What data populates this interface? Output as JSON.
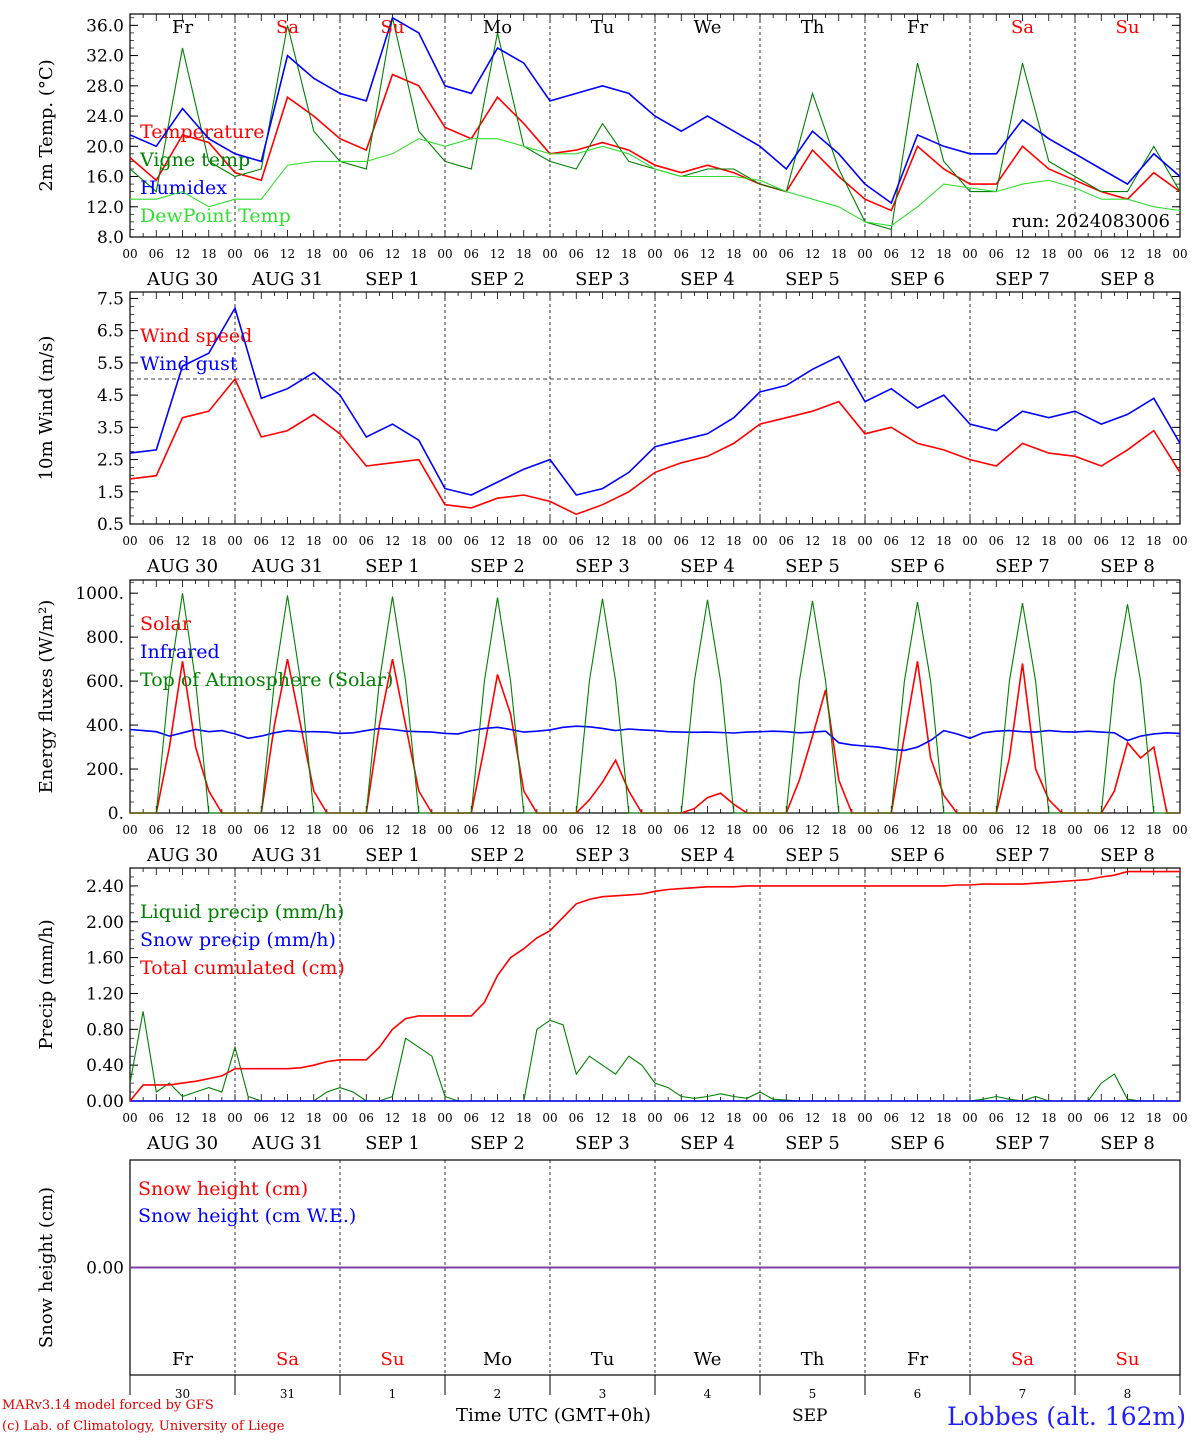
{
  "footer": {
    "credit_line1": "MARv3.14 model forced by GFS",
    "credit_line2": "(c) Lab. of Climatology, University of Liege",
    "x_axis_label": "Time UTC (GMT+0h)",
    "month_label": "SEP",
    "station": "Lobbes (alt. 162m)"
  },
  "colors": {
    "red": "#ff0000",
    "green": "#008000",
    "blue": "#0000ff",
    "lightgreen": "#33dd33",
    "weekend": "#ff0000",
    "weekday": "#000000"
  },
  "days": [
    {
      "dow": "Fr",
      "date": "AUG 30",
      "day": "30",
      "weekend": false
    },
    {
      "dow": "Sa",
      "date": "AUG 31",
      "day": "31",
      "weekend": true
    },
    {
      "dow": "Su",
      "date": "SEP  1",
      "day": "1",
      "weekend": true
    },
    {
      "dow": "Mo",
      "date": "SEP  2",
      "day": "2",
      "weekend": false
    },
    {
      "dow": "Tu",
      "date": "SEP  3",
      "day": "3",
      "weekend": false
    },
    {
      "dow": "We",
      "date": "SEP  4",
      "day": "4",
      "weekend": false
    },
    {
      "dow": "Th",
      "date": "SEP  5",
      "day": "5",
      "weekend": false
    },
    {
      "dow": "Fr",
      "date": "SEP  6",
      "day": "6",
      "weekend": false
    },
    {
      "dow": "Sa",
      "date": "SEP  7",
      "day": "7",
      "weekend": true
    },
    {
      "dow": "Su",
      "date": "SEP  8",
      "day": "8",
      "weekend": true
    }
  ],
  "hour_ticks": [
    "00",
    "06",
    "12",
    "18"
  ],
  "chart_data": [
    {
      "type": "line",
      "ylabel": "2m Temp. (°C)",
      "ylim": [
        8,
        37.5
      ],
      "yticks": [
        "8.0",
        "12.0",
        "16.0",
        "20.0",
        "24.0",
        "28.0",
        "32.0",
        "36.0"
      ],
      "annotation": "run: 2024083006",
      "x_hours": [
        0,
        6,
        12,
        18,
        24,
        30,
        36,
        42,
        48,
        54,
        60,
        66,
        72,
        78,
        84,
        90,
        96,
        102,
        108,
        114,
        120,
        126,
        132,
        138,
        144,
        150,
        156,
        162,
        168,
        174,
        180,
        186,
        192,
        198,
        204,
        210,
        216,
        222,
        228,
        234,
        240
      ],
      "series": [
        {
          "name": "Temperature",
          "color": "red",
          "values": [
            18.5,
            15.5,
            21.5,
            20.5,
            16.5,
            15.5,
            26.5,
            24,
            21,
            19.5,
            29.5,
            28,
            22.5,
            21,
            26.5,
            23,
            19,
            19.5,
            20.5,
            19.5,
            17.5,
            16.5,
            17.5,
            16.5,
            15,
            14,
            19.5,
            16,
            13,
            11.5,
            20,
            17,
            15,
            15,
            20,
            17,
            15.5,
            14,
            13,
            16.5,
            14
          ]
        },
        {
          "name": "Vigne temp",
          "color": "green",
          "values": [
            17,
            14,
            33,
            18,
            16,
            17,
            36,
            22,
            18,
            17,
            37,
            22,
            18,
            17,
            35,
            20,
            18,
            17,
            23,
            18,
            17,
            16,
            17,
            17,
            15,
            14,
            27,
            17,
            10,
            9,
            31,
            18,
            14,
            14,
            31,
            18,
            16,
            14,
            14,
            20,
            14
          ]
        },
        {
          "name": "Humidex",
          "color": "blue",
          "values": [
            21.5,
            20,
            25,
            21,
            19,
            18,
            32,
            29,
            27,
            26,
            37,
            35,
            28,
            27,
            33,
            31,
            26,
            27,
            28,
            27,
            24,
            22,
            24,
            22,
            20,
            17,
            22,
            19,
            15,
            12.5,
            21.5,
            20,
            19,
            19,
            23.5,
            21,
            19,
            17,
            15,
            19,
            16
          ]
        },
        {
          "name": "DewPoint Temp",
          "color": "lightgreen",
          "values": [
            13,
            13,
            14,
            12,
            13,
            13,
            17.5,
            18,
            18,
            18,
            19,
            21,
            20,
            21,
            21,
            20,
            19,
            19,
            20,
            19,
            17,
            16,
            16,
            16,
            15.5,
            14,
            13,
            12,
            10,
            9.5,
            12,
            15,
            14.5,
            14,
            15,
            15.5,
            14.5,
            13,
            13,
            12,
            11.5
          ]
        }
      ]
    },
    {
      "type": "line",
      "ylabel": "10m Wind (m/s)",
      "ylim": [
        0.5,
        7.7
      ],
      "yticks": [
        "0.5",
        "1.5",
        "2.5",
        "3.5",
        "4.5",
        "5.5",
        "6.5",
        "7.5"
      ],
      "reference_line": 5.0,
      "x_hours": [
        0,
        6,
        12,
        18,
        24,
        30,
        36,
        42,
        48,
        54,
        60,
        66,
        72,
        78,
        84,
        90,
        96,
        102,
        108,
        114,
        120,
        126,
        132,
        138,
        144,
        150,
        156,
        162,
        168,
        174,
        180,
        186,
        192,
        198,
        204,
        210,
        216,
        222,
        228,
        234,
        240
      ],
      "series": [
        {
          "name": "Wind speed",
          "color": "red",
          "values": [
            1.9,
            2.0,
            3.8,
            4.0,
            5.0,
            3.2,
            3.4,
            3.9,
            3.3,
            2.3,
            2.4,
            2.5,
            1.1,
            1.0,
            1.3,
            1.4,
            1.2,
            0.8,
            1.1,
            1.5,
            2.1,
            2.4,
            2.6,
            3.0,
            3.6,
            3.8,
            4.0,
            4.3,
            3.3,
            3.5,
            3.0,
            2.8,
            2.5,
            2.3,
            3.0,
            2.7,
            2.6,
            2.3,
            2.8,
            3.4,
            2.1
          ]
        },
        {
          "name": "Wind gust",
          "color": "blue",
          "values": [
            2.7,
            2.8,
            5.4,
            5.8,
            7.2,
            4.4,
            4.7,
            5.2,
            4.5,
            3.2,
            3.6,
            3.1,
            1.6,
            1.4,
            1.8,
            2.2,
            2.5,
            1.4,
            1.6,
            2.1,
            2.9,
            3.1,
            3.3,
            3.8,
            4.6,
            4.8,
            5.3,
            5.7,
            4.3,
            4.7,
            4.1,
            4.5,
            3.6,
            3.4,
            4.0,
            3.8,
            4.0,
            3.6,
            3.9,
            4.4,
            3.0
          ]
        }
      ]
    },
    {
      "type": "line",
      "ylabel": "Energy fluxes (W/m²)",
      "ylim": [
        0,
        1060
      ],
      "yticks": [
        "0.",
        "200.",
        "400.",
        "600.",
        "800.",
        "1000."
      ],
      "x_hours": [
        0,
        3,
        6,
        9,
        12,
        15,
        18,
        21,
        24,
        27,
        30,
        33,
        36,
        39,
        42,
        45,
        48,
        51,
        54,
        57,
        60,
        63,
        66,
        69,
        72,
        75,
        78,
        81,
        84,
        87,
        90,
        93,
        96,
        99,
        102,
        105,
        108,
        111,
        114,
        117,
        120,
        123,
        126,
        129,
        132,
        135,
        138,
        141,
        144,
        147,
        150,
        153,
        156,
        159,
        162,
        165,
        168,
        171,
        174,
        177,
        180,
        183,
        186,
        189,
        192,
        195,
        198,
        201,
        204,
        207,
        210,
        213,
        216,
        219,
        222,
        225,
        228,
        231,
        234,
        237,
        240
      ],
      "series": [
        {
          "name": "Solar",
          "color": "red",
          "values": [
            0,
            0,
            0,
            300,
            690,
            300,
            100,
            0,
            0,
            0,
            0,
            400,
            700,
            400,
            100,
            0,
            0,
            0,
            0,
            400,
            700,
            400,
            100,
            0,
            0,
            0,
            0,
            300,
            630,
            450,
            100,
            0,
            0,
            0,
            0,
            60,
            140,
            240,
            100,
            0,
            0,
            0,
            0,
            20,
            70,
            90,
            40,
            0,
            0,
            0,
            0,
            150,
            350,
            560,
            150,
            0,
            0,
            0,
            0,
            350,
            690,
            250,
            80,
            0,
            0,
            0,
            0,
            250,
            680,
            200,
            60,
            0,
            0,
            0,
            0,
            100,
            320,
            250,
            300,
            0,
            0
          ]
        },
        {
          "name": "Infrared",
          "color": "blue",
          "values": [
            380,
            375,
            370,
            350,
            365,
            380,
            370,
            375,
            360,
            340,
            350,
            365,
            375,
            370,
            370,
            368,
            362,
            365,
            375,
            385,
            380,
            372,
            370,
            368,
            362,
            360,
            375,
            385,
            390,
            380,
            368,
            372,
            378,
            390,
            395,
            392,
            385,
            375,
            382,
            378,
            375,
            370,
            368,
            367,
            368,
            366,
            364,
            368,
            370,
            372,
            370,
            365,
            368,
            372,
            320,
            310,
            305,
            300,
            290,
            285,
            300,
            330,
            375,
            360,
            340,
            365,
            372,
            375,
            370,
            368,
            375,
            370,
            368,
            372,
            368,
            365,
            330,
            350,
            360,
            365,
            362
          ]
        },
        {
          "name": "Top of Atmosphere (Solar)",
          "color": "green",
          "values": [
            0,
            0,
            0,
            600,
            1000,
            600,
            0,
            0,
            0,
            0,
            0,
            600,
            990,
            600,
            0,
            0,
            0,
            0,
            0,
            600,
            985,
            600,
            0,
            0,
            0,
            0,
            0,
            600,
            980,
            600,
            0,
            0,
            0,
            0,
            0,
            600,
            975,
            600,
            0,
            0,
            0,
            0,
            0,
            600,
            970,
            600,
            0,
            0,
            0,
            0,
            0,
            600,
            965,
            600,
            0,
            0,
            0,
            0,
            0,
            600,
            960,
            600,
            0,
            0,
            0,
            0,
            0,
            600,
            955,
            600,
            0,
            0,
            0,
            0,
            0,
            600,
            950,
            600,
            0,
            0,
            0
          ]
        }
      ]
    },
    {
      "type": "line",
      "ylabel": "Precip (mm/h)",
      "ylim": [
        0,
        2.6
      ],
      "yticks": [
        "0.00",
        "0.40",
        "0.80",
        "1.20",
        "1.60",
        "2.00",
        "2.40"
      ],
      "x_hours": [
        0,
        3,
        6,
        9,
        12,
        15,
        18,
        21,
        24,
        27,
        30,
        33,
        36,
        39,
        42,
        45,
        48,
        51,
        54,
        57,
        60,
        63,
        66,
        69,
        72,
        75,
        78,
        81,
        84,
        87,
        90,
        93,
        96,
        99,
        102,
        105,
        108,
        111,
        114,
        117,
        120,
        123,
        126,
        129,
        132,
        135,
        138,
        141,
        144,
        147,
        150,
        153,
        156,
        159,
        162,
        165,
        168,
        171,
        174,
        177,
        180,
        183,
        186,
        189,
        192,
        195,
        198,
        201,
        204,
        207,
        210,
        213,
        216,
        219,
        222,
        225,
        228,
        231,
        234,
        237,
        240
      ],
      "series": [
        {
          "name": "Liquid precip (mm/h)",
          "color": "green",
          "values": [
            0.2,
            1.0,
            0.1,
            0.2,
            0.05,
            0.1,
            0.15,
            0.1,
            0.6,
            0.05,
            0.0,
            0.0,
            0.0,
            0.0,
            0.0,
            0.1,
            0.15,
            0.1,
            0.0,
            0.0,
            0.05,
            0.7,
            0.6,
            0.5,
            0.05,
            0.0,
            0.0,
            0.0,
            0.0,
            0.0,
            0.0,
            0.8,
            0.9,
            0.85,
            0.3,
            0.5,
            0.4,
            0.3,
            0.5,
            0.4,
            0.2,
            0.15,
            0.05,
            0.03,
            0.05,
            0.08,
            0.05,
            0.03,
            0.1,
            0.02,
            0.01,
            0.0,
            0.0,
            0.0,
            0.0,
            0.0,
            0.0,
            0.0,
            0.0,
            0.0,
            0.0,
            0.0,
            0.0,
            0.0,
            0.0,
            0.02,
            0.05,
            0.02,
            0.0,
            0.05,
            0.0,
            0.0,
            0.0,
            0.0,
            0.2,
            0.3,
            0.02,
            0.0,
            0.0,
            0.0,
            0.0
          ]
        },
        {
          "name": "Snow precip (mm/h)",
          "color": "blue",
          "values": [
            0,
            0,
            0,
            0,
            0,
            0,
            0,
            0,
            0,
            0,
            0,
            0,
            0,
            0,
            0,
            0,
            0,
            0,
            0,
            0,
            0,
            0,
            0,
            0,
            0,
            0,
            0,
            0,
            0,
            0,
            0,
            0,
            0,
            0,
            0,
            0,
            0,
            0,
            0,
            0,
            0,
            0,
            0,
            0,
            0,
            0,
            0,
            0,
            0,
            0,
            0,
            0,
            0,
            0,
            0,
            0,
            0,
            0,
            0,
            0,
            0,
            0,
            0,
            0,
            0,
            0,
            0,
            0,
            0,
            0,
            0,
            0,
            0,
            0,
            0,
            0,
            0,
            0,
            0,
            0,
            0
          ]
        },
        {
          "name": "Total cumulated (cm)",
          "color": "red",
          "values": [
            0.0,
            0.18,
            0.18,
            0.18,
            0.2,
            0.22,
            0.25,
            0.28,
            0.36,
            0.36,
            0.36,
            0.36,
            0.36,
            0.37,
            0.4,
            0.44,
            0.46,
            0.46,
            0.46,
            0.6,
            0.8,
            0.92,
            0.95,
            0.95,
            0.95,
            0.95,
            0.95,
            1.1,
            1.4,
            1.6,
            1.7,
            1.82,
            1.9,
            2.05,
            2.2,
            2.25,
            2.28,
            2.29,
            2.3,
            2.31,
            2.34,
            2.36,
            2.37,
            2.38,
            2.39,
            2.39,
            2.39,
            2.4,
            2.4,
            2.4,
            2.4,
            2.4,
            2.4,
            2.4,
            2.4,
            2.4,
            2.4,
            2.4,
            2.4,
            2.4,
            2.4,
            2.4,
            2.4,
            2.41,
            2.41,
            2.42,
            2.42,
            2.42,
            2.42,
            2.43,
            2.44,
            2.45,
            2.46,
            2.47,
            2.5,
            2.52,
            2.56,
            2.56,
            2.56,
            2.56,
            2.56
          ]
        }
      ]
    },
    {
      "type": "line",
      "ylabel": "Snow height (cm)",
      "ylim": [
        -1,
        1
      ],
      "yticks": [
        "0.00"
      ],
      "x_hours": [
        0,
        240
      ],
      "series": [
        {
          "name": "Snow height (cm)",
          "color": "red",
          "values": [
            0,
            0
          ]
        },
        {
          "name": "Snow height (cm W.E.)",
          "color": "blue",
          "values": [
            0,
            0
          ]
        }
      ]
    }
  ]
}
